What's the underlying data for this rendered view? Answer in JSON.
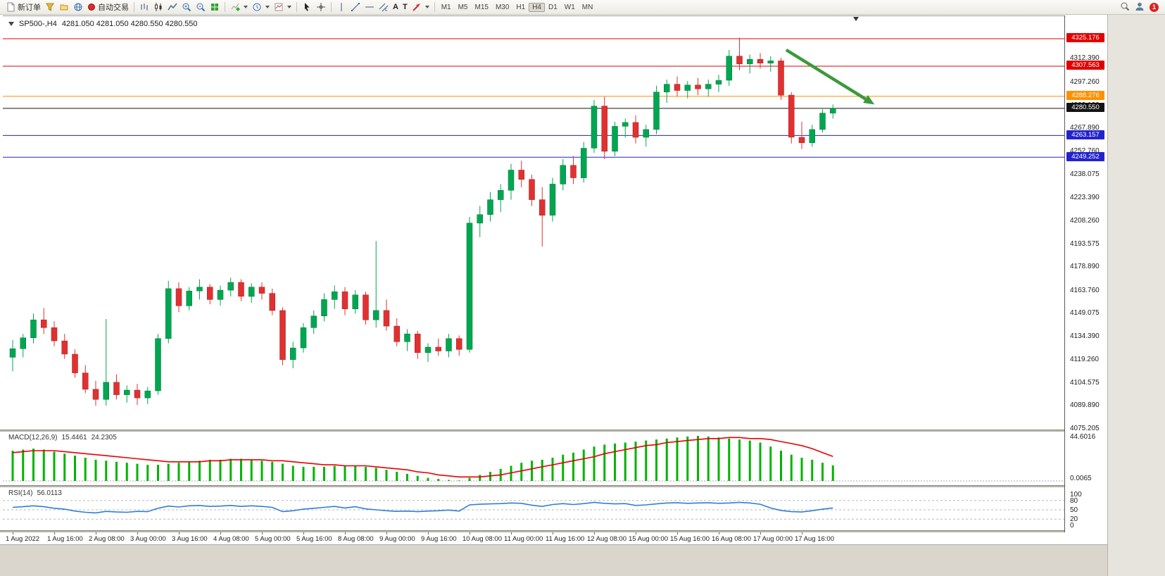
{
  "toolbar": {
    "new_order_label": "新订单",
    "auto_trading_label": "自动交易",
    "text_tool": "A",
    "label_tool": "T",
    "timeframes": [
      "M1",
      "M5",
      "M15",
      "M30",
      "H1",
      "H4",
      "D1",
      "W1",
      "MN"
    ],
    "active_timeframe": "H4",
    "notification_count": "1",
    "icon_buttons": [
      "new-order",
      "market-watch",
      "navigator",
      "alerts",
      "auto-trading",
      "bar-chart",
      "candlestick-chart",
      "line-chart",
      "zoom-in",
      "zoom-out",
      "tile-windows",
      "add-indicator",
      "periods",
      "templates",
      "cursor",
      "crosshair",
      "vertical-line",
      "trendline",
      "horizontal-line",
      "equidistant-channel",
      "text",
      "text-label",
      "arrows",
      "search",
      "user",
      "notification"
    ]
  },
  "chart_header": {
    "symbol": "SP500-,H4",
    "quotes": "4281.050 4281.050 4280.550 4280.550"
  },
  "chart_data": {
    "type": "candlestick",
    "symbol": "SP500-",
    "timeframe": "H4",
    "colors": {
      "up": "#00a651",
      "up_border": "#00江7a38",
      "down": "#e03131",
      "macd_hist": "#00b400",
      "macd_signal": "#e80000",
      "rsi_line": "#2f7ed8",
      "arrow": "#3a9a3a",
      "resistance": "#e00000",
      "pivot": "#ff9000",
      "bid": "#141414",
      "support": "#2323cc"
    },
    "price_ticks": [
      "4312.390",
      "4297.260",
      "4282.130",
      "4267.890",
      "4252.760",
      "4238.075",
      "4223.390",
      "4208.260",
      "4193.575",
      "4178.890",
      "4163.760",
      "4149.075",
      "4134.390",
      "4119.260",
      "4104.575",
      "4089.890",
      "4075.205"
    ],
    "hlines": [
      {
        "label": "4325.176",
        "value": 4325.176,
        "color": "#e00000"
      },
      {
        "label": "4307.563",
        "value": 4307.563,
        "color": "#e00000"
      },
      {
        "label": "4288.276",
        "value": 4288.276,
        "color": "#ff9000"
      },
      {
        "label": "4280.550",
        "value": 4280.55,
        "color": "#141414"
      },
      {
        "label": "4263.157",
        "value": 4263.157,
        "color": "#2323cc"
      },
      {
        "label": "4249.252",
        "value": 4249.252,
        "color": "#2323cc"
      }
    ],
    "candles": [
      [
        4121.0,
        4132.0,
        4112.0,
        4126.5
      ],
      [
        4126.5,
        4136.0,
        4121.0,
        4133.5
      ],
      [
        4133.5,
        4149.0,
        4130.0,
        4145.0
      ],
      [
        4145.0,
        4152.5,
        4136.0,
        4140.0
      ],
      [
        4140.0,
        4144.0,
        4128.0,
        4131.5
      ],
      [
        4131.5,
        4136.0,
        4120.0,
        4123.0
      ],
      [
        4123.0,
        4126.0,
        4108.0,
        4111.0
      ],
      [
        4111.0,
        4116.0,
        4098.0,
        4100.5
      ],
      [
        4100.5,
        4106.0,
        4089.9,
        4094.0
      ],
      [
        4094.0,
        4145.5,
        4090.0,
        4105.0
      ],
      [
        4105.0,
        4110.0,
        4094.0,
        4097.0
      ],
      [
        4097.0,
        4103.0,
        4092.0,
        4100.0
      ],
      [
        4100.0,
        4104.0,
        4090.5,
        4095.0
      ],
      [
        4095.0,
        4102.0,
        4091.0,
        4099.5
      ],
      [
        4099.5,
        4136.0,
        4097.0,
        4133.0
      ],
      [
        4133.0,
        4170.0,
        4130.0,
        4165.0
      ],
      [
        4165.0,
        4169.0,
        4150.0,
        4154.0
      ],
      [
        4154.0,
        4166.0,
        4151.0,
        4163.5
      ],
      [
        4163.5,
        4171.0,
        4158.0,
        4166.0
      ],
      [
        4166.0,
        4168.0,
        4155.0,
        4158.0
      ],
      [
        4158.0,
        4167.0,
        4154.0,
        4164.0
      ],
      [
        4164.0,
        4172.0,
        4160.0,
        4169.0
      ],
      [
        4169.0,
        4171.0,
        4157.0,
        4160.0
      ],
      [
        4160.0,
        4168.5,
        4156.0,
        4166.0
      ],
      [
        4166.0,
        4169.0,
        4158.0,
        4162.0
      ],
      [
        4162.0,
        4165.0,
        4148.0,
        4151.0
      ],
      [
        4151.0,
        4153.0,
        4116.0,
        4119.5
      ],
      [
        4119.5,
        4131.0,
        4114.0,
        4127.0
      ],
      [
        4127.0,
        4143.0,
        4124.0,
        4140.0
      ],
      [
        4140.0,
        4151.0,
        4136.0,
        4147.5
      ],
      [
        4147.5,
        4162.0,
        4144.0,
        4158.0
      ],
      [
        4158.0,
        4167.0,
        4152.0,
        4163.0
      ],
      [
        4163.0,
        4166.0,
        4148.0,
        4152.0
      ],
      [
        4152.0,
        4164.0,
        4149.0,
        4161.0
      ],
      [
        4161.0,
        4163.0,
        4142.0,
        4145.0
      ],
      [
        4145.0,
        4195.5,
        4140.0,
        4151.0
      ],
      [
        4151.0,
        4158.0,
        4138.0,
        4141.0
      ],
      [
        4141.0,
        4146.0,
        4128.0,
        4131.0
      ],
      [
        4131.0,
        4139.0,
        4125.0,
        4136.0
      ],
      [
        4136.0,
        4138.0,
        4120.0,
        4124.0
      ],
      [
        4124.0,
        4130.0,
        4118.0,
        4127.5
      ],
      [
        4127.5,
        4133.0,
        4122.0,
        4125.0
      ],
      [
        4125.0,
        4136.0,
        4121.0,
        4133.0
      ],
      [
        4133.0,
        4135.0,
        4122.0,
        4126.0
      ],
      [
        4126.0,
        4211.0,
        4124.0,
        4207.0
      ],
      [
        4207.0,
        4218.0,
        4198.0,
        4212.5
      ],
      [
        4212.5,
        4227.0,
        4208.0,
        4222.0
      ],
      [
        4222.0,
        4232.0,
        4214.0,
        4228.0
      ],
      [
        4228.0,
        4245.0,
        4222.0,
        4241.0
      ],
      [
        4241.0,
        4247.0,
        4230.0,
        4235.0
      ],
      [
        4235.0,
        4238.0,
        4218.0,
        4222.0
      ],
      [
        4222.0,
        4230.0,
        4192.0,
        4212.0
      ],
      [
        4212.0,
        4236.0,
        4208.0,
        4232.0
      ],
      [
        4232.0,
        4248.0,
        4228.0,
        4244.0
      ],
      [
        4244.0,
        4250.0,
        4232.0,
        4236.0
      ],
      [
        4236.0,
        4259.0,
        4233.0,
        4255.0
      ],
      [
        4255.0,
        4286.0,
        4252.0,
        4282.0
      ],
      [
        4282.0,
        4288.0,
        4248.0,
        4253.0
      ],
      [
        4253.0,
        4272.0,
        4250.0,
        4269.0
      ],
      [
        4269.0,
        4274.0,
        4262.0,
        4271.5
      ],
      [
        4271.5,
        4276.0,
        4258.0,
        4262.0
      ],
      [
        4262.0,
        4270.0,
        4256.0,
        4267.0
      ],
      [
        4267.0,
        4295.0,
        4264.0,
        4291.0
      ],
      [
        4291.0,
        4299.0,
        4284.0,
        4296.0
      ],
      [
        4296.0,
        4301.0,
        4288.0,
        4292.0
      ],
      [
        4292.0,
        4298.0,
        4287.0,
        4295.5
      ],
      [
        4295.5,
        4300.0,
        4289.0,
        4293.0
      ],
      [
        4293.0,
        4299.0,
        4288.0,
        4296.0
      ],
      [
        4296.0,
        4302.0,
        4291.0,
        4298.5
      ],
      [
        4298.5,
        4318.0,
        4295.0,
        4314.0
      ],
      [
        4314.0,
        4325.9,
        4305.0,
        4309.0
      ],
      [
        4309.0,
        4315.0,
        4303.0,
        4312.0
      ],
      [
        4312.0,
        4316.0,
        4306.0,
        4309.5
      ],
      [
        4309.5,
        4314.0,
        4304.0,
        4311.0
      ],
      [
        4311.0,
        4313.0,
        4286.0,
        4289.0
      ],
      [
        4289.0,
        4291.0,
        4258.0,
        4262.0
      ],
      [
        4262.0,
        4272.0,
        4254.5,
        4258.5
      ],
      [
        4258.5,
        4270.0,
        4256.0,
        4267.0
      ],
      [
        4267.0,
        4280.0,
        4265.0,
        4277.5
      ],
      [
        4277.5,
        4283.0,
        4274.0,
        4280.55
      ]
    ],
    "time_labels": [
      "1 Aug 2022",
      "1 Aug 16:00",
      "2 Aug 08:00",
      "3 Aug 00:00",
      "3 Aug 16:00",
      "4 Aug 08:00",
      "5 Aug 00:00",
      "5 Aug 16:00",
      "8 Aug 08:00",
      "9 Aug 00:00",
      "9 Aug 16:00",
      "10 Aug 08:00",
      "11 Aug 00:00",
      "11 Aug 16:00",
      "12 Aug 08:00",
      "15 Aug 00:00",
      "15 Aug 16:00",
      "16 Aug 08:00",
      "17 Aug 00:00",
      "17 Aug 16:00"
    ],
    "candles_per_label": 4,
    "macd": {
      "title": "MACD(12,26,9)",
      "value_main": "15.4461",
      "value_signal": "24.2305",
      "scale_top": "44.6016",
      "scale_bottom": "0.0065",
      "histogram": [
        30,
        31,
        32,
        31,
        29,
        27,
        25,
        23,
        21,
        20,
        19,
        18,
        17,
        16,
        16,
        17,
        18,
        19,
        20,
        21,
        21,
        22,
        22,
        21,
        20,
        19,
        17,
        15,
        14,
        14,
        14,
        15,
        15,
        15,
        14,
        13,
        11,
        9,
        7,
        5,
        3,
        2,
        1,
        0.5,
        3,
        6,
        9,
        12,
        15,
        18,
        20,
        21,
        23,
        26,
        28,
        31,
        34,
        36,
        37,
        38,
        39,
        40,
        41,
        42,
        43,
        44,
        44.6,
        44,
        43,
        42,
        41,
        40,
        38,
        34,
        30,
        26,
        23,
        21,
        18,
        15.4461
      ],
      "signal": [
        28,
        29,
        30,
        30,
        30,
        29,
        28,
        27,
        26,
        25,
        24,
        23,
        22,
        21,
        20,
        19,
        19,
        19,
        19,
        20,
        20,
        21,
        21,
        21,
        21,
        20,
        20,
        19,
        18,
        17,
        16,
        16,
        15,
        15,
        15,
        14,
        13,
        12,
        11,
        9,
        8,
        6,
        5,
        4,
        4,
        4,
        5,
        6,
        8,
        10,
        12,
        14,
        16,
        18,
        20,
        22,
        24,
        27,
        29,
        31,
        33,
        35,
        36,
        38,
        39,
        40,
        41,
        42,
        42,
        43,
        43,
        42,
        42,
        41,
        39,
        37,
        35,
        32,
        28,
        24.2305
      ]
    },
    "rsi": {
      "title": "RSI(14)",
      "value": "56.0113",
      "scale": [
        "100",
        "80",
        "50",
        "20",
        "0"
      ],
      "levels": [
        80,
        50,
        20
      ],
      "values": [
        58,
        60,
        63,
        60,
        55,
        52,
        46,
        42,
        40,
        45,
        43,
        42,
        45,
        44,
        55,
        62,
        59,
        63,
        64,
        61,
        62,
        64,
        61,
        63,
        61,
        58,
        44,
        47,
        52,
        55,
        58,
        61,
        56,
        60,
        53,
        50,
        47,
        45,
        46,
        44,
        46,
        47,
        49,
        46,
        66,
        68,
        69,
        70,
        72,
        71,
        65,
        61,
        67,
        70,
        67,
        70,
        74,
        71,
        69,
        70,
        64,
        66,
        69,
        72,
        73,
        71,
        72,
        73,
        71,
        72,
        74,
        72,
        68,
        56,
        48,
        44,
        43,
        47,
        52,
        56.0113
      ]
    },
    "trend_arrow": {
      "from_index": 74.5,
      "from_price": 4318,
      "to_index": 83,
      "to_price": 4283
    }
  }
}
